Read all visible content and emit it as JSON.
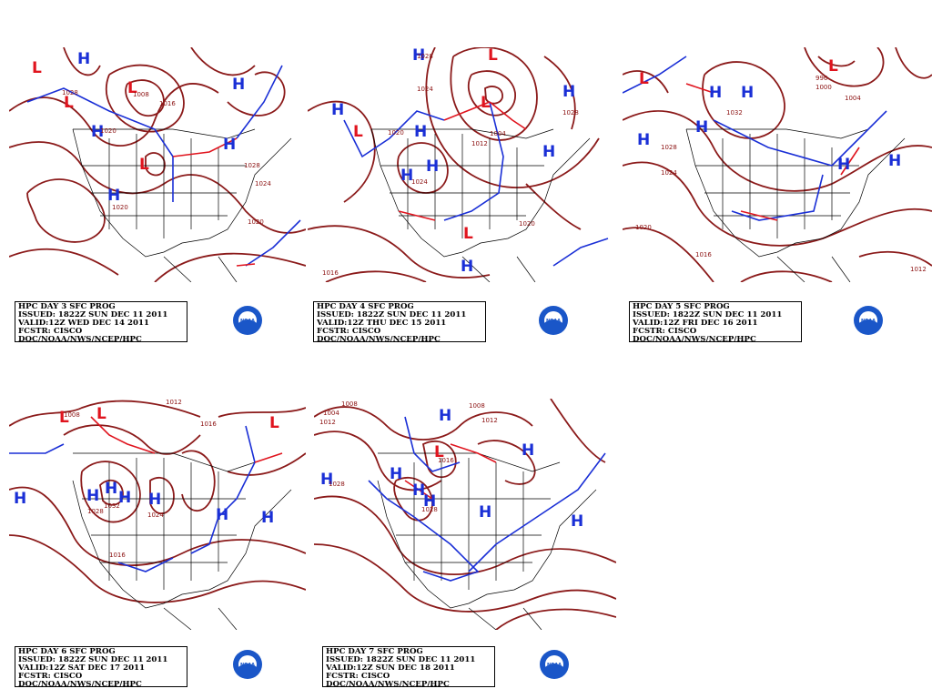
{
  "colors": {
    "isobar": "#8b1a1a",
    "high": "#1a2fd6",
    "low": "#e0141e",
    "cold_front": "#1a2fd6",
    "warm_front": "#e0141e",
    "coast": "#000000"
  },
  "panels": [
    {
      "issued_line1": "HPC DAY 3 SFC PROG",
      "issued_line2": "ISSUED: 1822Z SUN DEC 11 2011",
      "issued_line3": "VALID:12Z WED DEC 14 2011",
      "issued_line4": "FCSTR: CISCO",
      "issued_line5": "DOC/NOAA/NWS/NCEP/HPC",
      "isobar_labels": [
        "1028",
        "1008",
        "1016",
        "1020",
        "1028",
        "1024",
        "1020",
        "1020"
      ],
      "highs": 5,
      "lows": 4
    },
    {
      "issued_line1": "HPC DAY 4 SFC PROG",
      "issued_line2": "ISSUED: 1822Z SUN DEC 11 2011",
      "issued_line3": "VALID:12Z THU DEC 15 2011",
      "issued_line4": "FCSTR: CISCO",
      "issued_line5": "DOC/NOAA/NWS/NCEP/HPC",
      "isobar_labels": [
        "1028",
        "1024",
        "1020",
        "1004",
        "1012",
        "1028",
        "1024",
        "1020",
        "1016"
      ],
      "highs": 7,
      "lows": 4
    },
    {
      "issued_line1": "HPC DAY 5 SFC PROG",
      "issued_line2": "ISSUED: 1822Z SUN DEC 11 2011",
      "issued_line3": "VALID:12Z FRI DEC 16 2011",
      "issued_line4": "FCSTR: CISCO",
      "issued_line5": "DOC/NOAA/NWS/NCEP/HPC",
      "isobar_labels": [
        "1032",
        "1028",
        "1024",
        "1020",
        "1016",
        "1012",
        "996",
        "1000",
        "1004"
      ],
      "highs": 7,
      "lows": 2
    },
    {
      "issued_line1": "HPC DAY 6 SFC PROG",
      "issued_line2": "ISSUED: 1822Z SUN DEC 11 2011",
      "issued_line3": "VALID:12Z SAT DEC 17 2011",
      "issued_line4": "FCSTR: CISCO",
      "issued_line5": "DOC/NOAA/NWS/NCEP/HPC",
      "isobar_labels": [
        "1012",
        "1016",
        "1008",
        "1028",
        "1032",
        "1024",
        "1016"
      ],
      "highs": 7,
      "lows": 3
    },
    {
      "issued_line1": "HPC DAY 7 SFC PROG",
      "issued_line2": "ISSUED: 1822Z SUN DEC 11 2011",
      "issued_line3": "VALID:12Z SUN DEC 18 2011",
      "issued_line4": "FCSTR: CISCO",
      "issued_line5": "DOC/NOAA/NWS/NCEP/HPC",
      "isobar_labels": [
        "1008",
        "1004",
        "1012",
        "1008",
        "1012",
        "1016",
        "1028",
        "1028"
      ],
      "highs": 9,
      "lows": 1
    }
  ],
  "logo_text": "NOAA"
}
